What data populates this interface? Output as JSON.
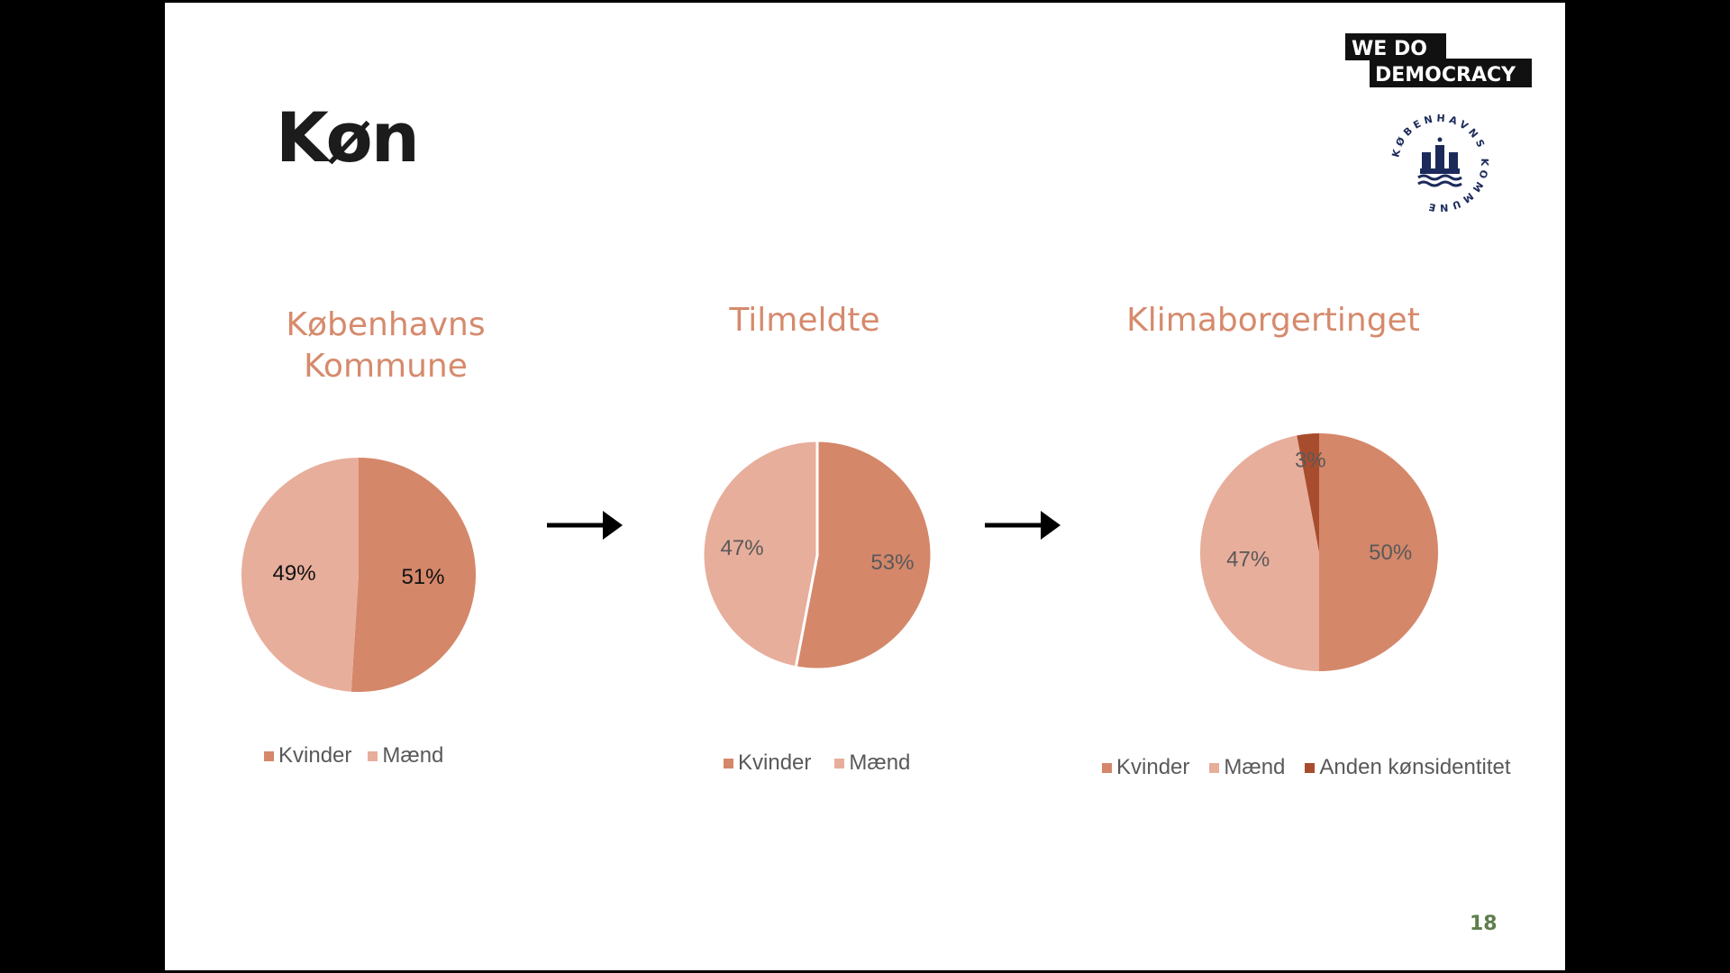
{
  "slide": {
    "title": "Køn",
    "page_number": "18",
    "logo_wdd": {
      "line1": "WE  DO",
      "line2": "DEMOCRACY"
    },
    "logo_kk": {
      "text": "KØBENHAVNS KOMMUNE"
    }
  },
  "colors": {
    "kvinder": "#d5876a",
    "maend": "#e7ae9b",
    "anden": "#a84c2e",
    "title_accent": "#d68a6c"
  },
  "chart_data": [
    {
      "type": "pie",
      "title_lines": [
        "Københavns",
        "Kommune"
      ],
      "slices": [
        {
          "name": "Kvinder",
          "value": 51,
          "label": "51%",
          "color": "#d5876a"
        },
        {
          "name": "Mænd",
          "value": 49,
          "label": "49%",
          "color": "#e7ae9b"
        }
      ],
      "legend": [
        "Kvinder",
        "Mænd"
      ],
      "legend_position": "bottom"
    },
    {
      "type": "pie",
      "title_lines": [
        "Tilmeldte"
      ],
      "slices": [
        {
          "name": "Kvinder",
          "value": 53,
          "label": "53%",
          "color": "#d5876a"
        },
        {
          "name": "Mænd",
          "value": 47,
          "label": "47%",
          "color": "#e7ae9b"
        }
      ],
      "legend": [
        "Kvinder",
        "Mænd"
      ],
      "legend_position": "bottom"
    },
    {
      "type": "pie",
      "title_lines": [
        "Klimaborgertinget"
      ],
      "slices": [
        {
          "name": "Kvinder",
          "value": 50,
          "label": "50%",
          "color": "#d5876a"
        },
        {
          "name": "Mænd",
          "value": 47,
          "label": "47%",
          "color": "#e7ae9b"
        },
        {
          "name": "Anden kønsidentitet",
          "value": 3,
          "label": "3%",
          "color": "#a84c2e"
        }
      ],
      "legend": [
        "Kvinder",
        "Mænd",
        "Anden kønsidentitet"
      ],
      "legend_position": "bottom"
    }
  ]
}
